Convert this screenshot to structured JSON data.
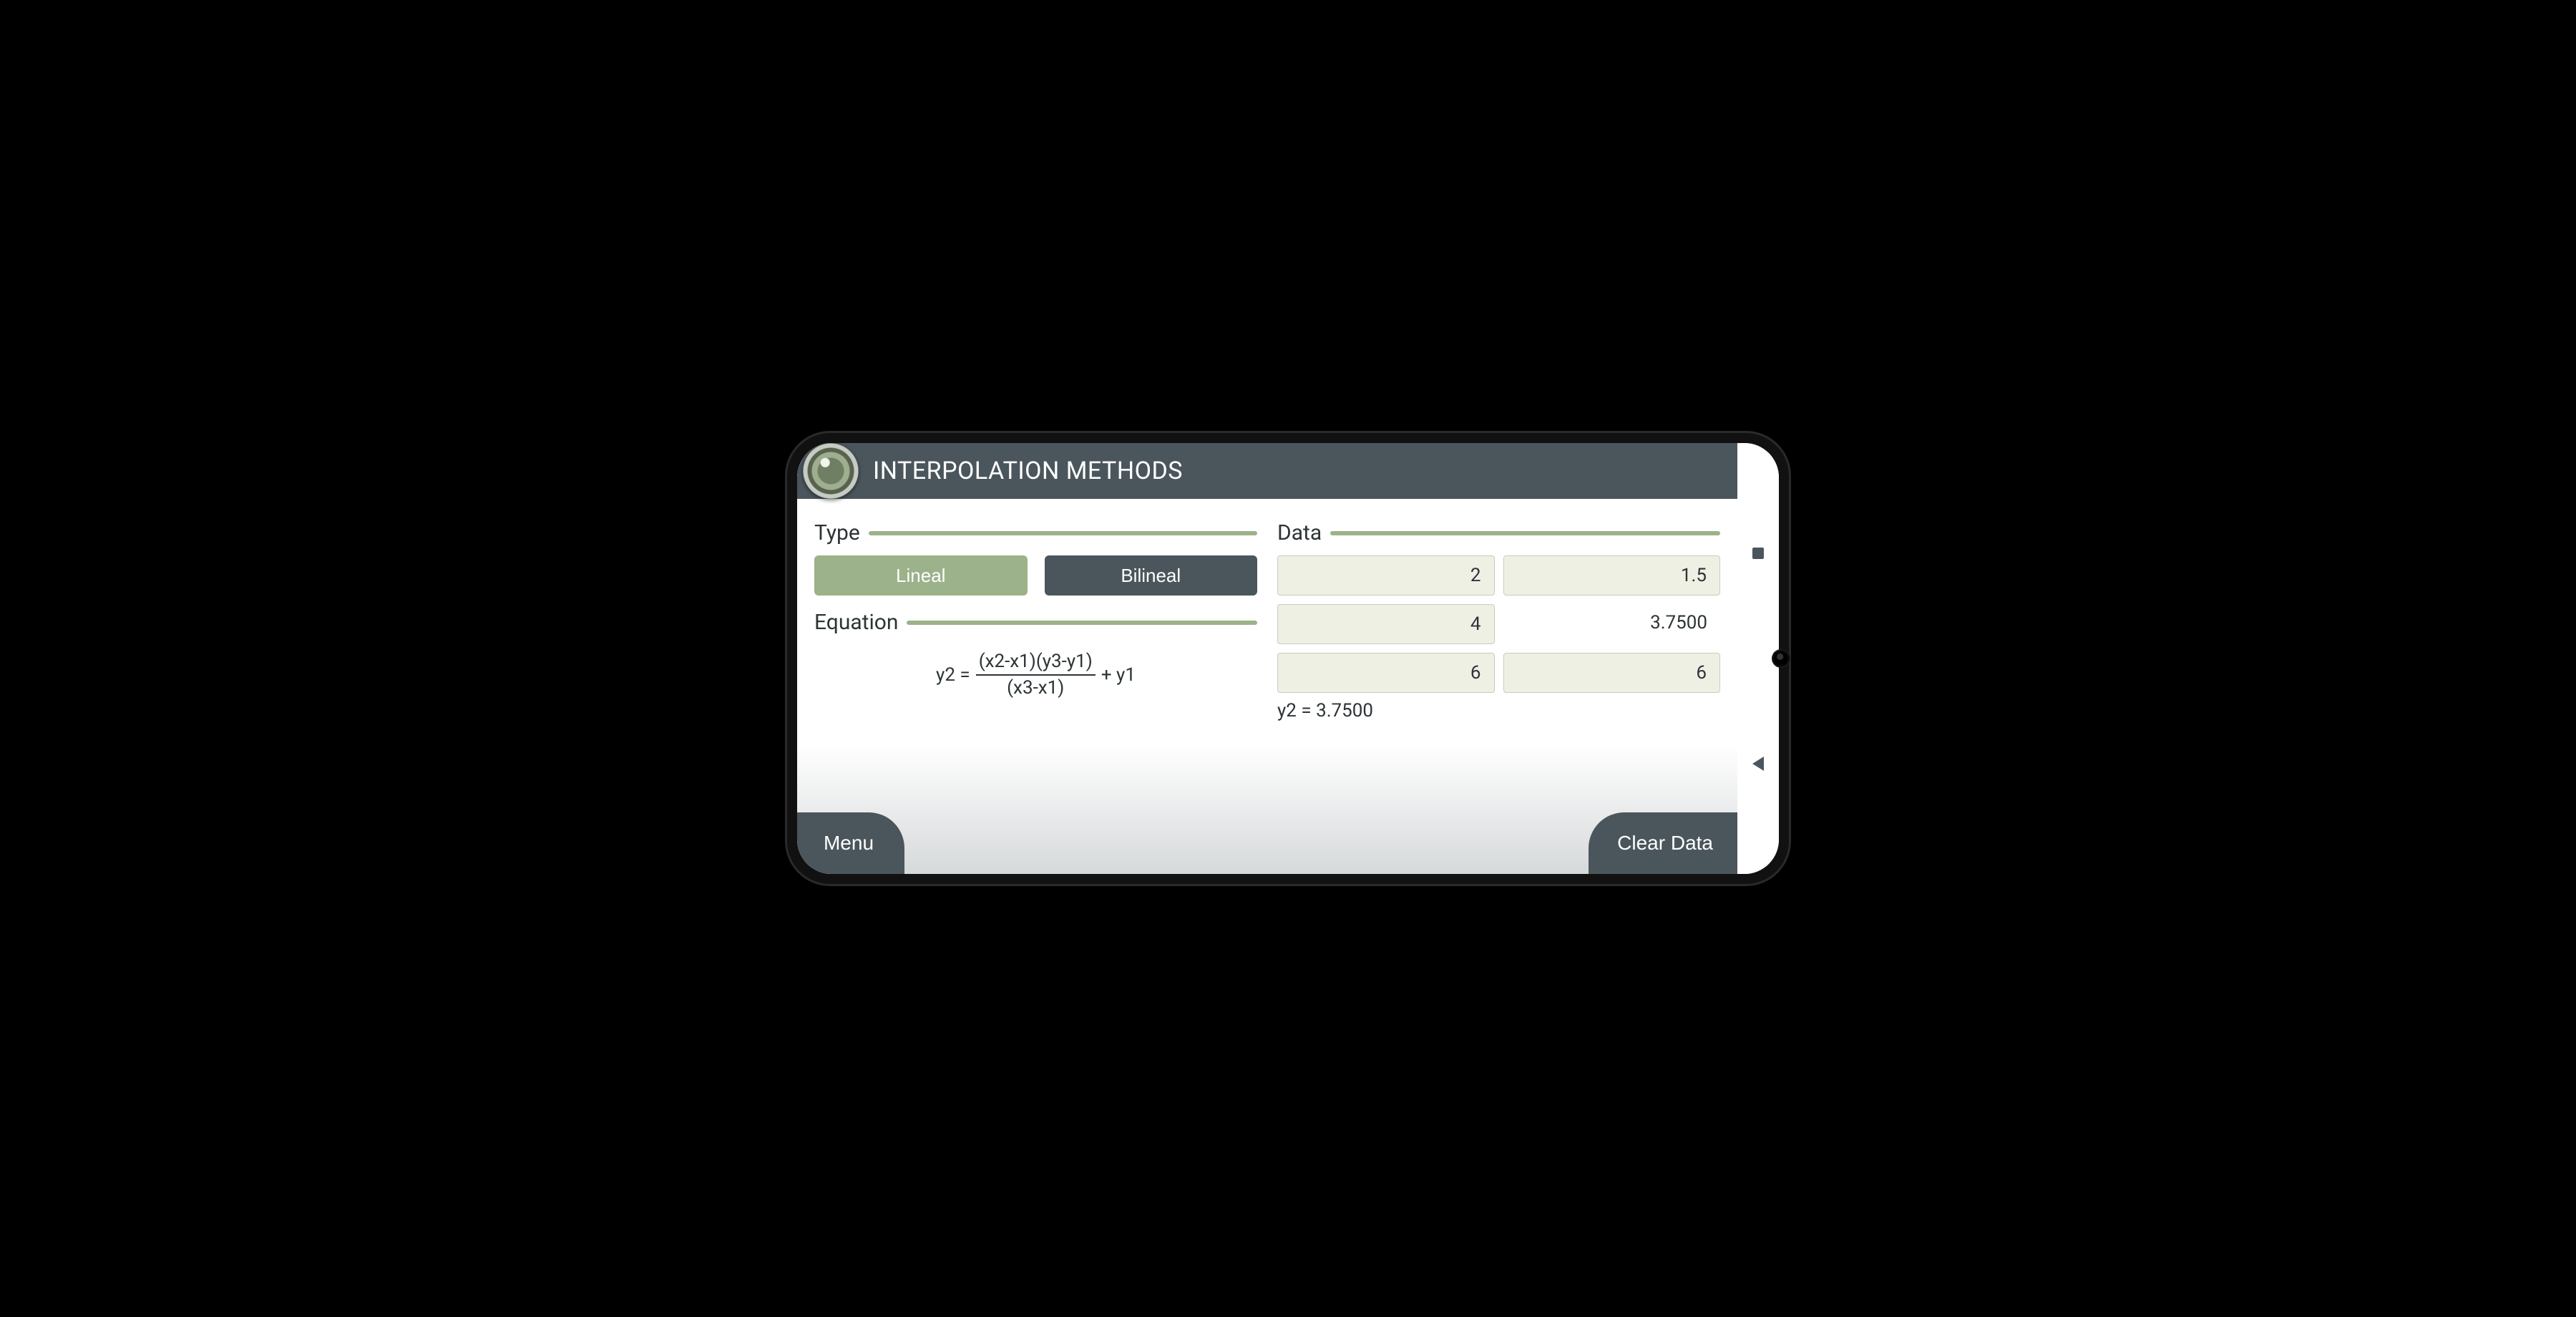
{
  "header": {
    "title": "INTERPOLATION METHODS"
  },
  "type_section": {
    "label": "Type",
    "active_index": 0,
    "options": [
      "Lineal",
      "Bilineal"
    ]
  },
  "equation_section": {
    "label": "Equation",
    "lhs": "y2 =",
    "numerator": "(x2-x1)(y3-y1)",
    "denominator": "(x3-x1)",
    "suffix": "+ y1"
  },
  "data_section": {
    "label": "Data",
    "rows": [
      {
        "x": "2",
        "y": "1.5",
        "y_is_input": true
      },
      {
        "x": "4",
        "y": "3.7500",
        "y_is_input": false
      },
      {
        "x": "6",
        "y": "6",
        "y_is_input": true
      }
    ],
    "result_text": "y2 = 3.7500"
  },
  "footer": {
    "menu": "Menu",
    "clear": "Clear Data"
  },
  "colors": {
    "header_bg": "#4b565c",
    "accent_green": "#9cb28a",
    "field_bg": "#eef0e4",
    "field_border": "#c9ccbd",
    "text": "#2d3436"
  }
}
